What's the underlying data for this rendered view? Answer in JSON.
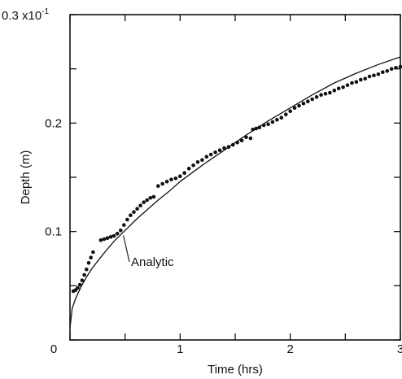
{
  "chart_data": {
    "type": "scatter",
    "title": "",
    "xlabel": "Time (hrs)",
    "ylabel": "Depth (m)",
    "xlim": [
      0,
      3
    ],
    "ylim": [
      0,
      0.03
    ],
    "grid": false,
    "legend": "none",
    "x_ticks": [
      0,
      0.5,
      1,
      1.5,
      2,
      2.5,
      3
    ],
    "y_ticks": [
      0,
      0.005,
      0.01,
      0.015,
      0.02,
      0.025,
      0.03
    ],
    "x_tick_labels": [
      {
        "value": 0,
        "label": "0"
      },
      {
        "value": 1,
        "label": "1"
      },
      {
        "value": 2,
        "label": "2"
      },
      {
        "value": 3,
        "label": "3"
      }
    ],
    "y_tick_labels": [
      {
        "value": 0.01,
        "label": "0.1"
      },
      {
        "value": 0.02,
        "label": "0.2"
      }
    ],
    "y_top_label": {
      "base": "0.3 x10",
      "exponent": "-1"
    },
    "origin_label": "0",
    "analytic_curve": {
      "name": "Analytic",
      "x": [
        0.0,
        0.02,
        0.05,
        0.1,
        0.15,
        0.2,
        0.3,
        0.4,
        0.5,
        0.6,
        0.7,
        0.8,
        0.9,
        1.0,
        1.2,
        1.4,
        1.6,
        1.8,
        2.0,
        2.2,
        2.4,
        2.6,
        2.8,
        3.0
      ],
      "y": [
        0.0011,
        0.0029,
        0.0038,
        0.0049,
        0.0058,
        0.0066,
        0.0079,
        0.0091,
        0.0101,
        0.0111,
        0.012,
        0.0129,
        0.0137,
        0.0146,
        0.0161,
        0.0175,
        0.0189,
        0.0202,
        0.0214,
        0.0226,
        0.0237,
        0.0246,
        0.0254,
        0.0261
      ]
    },
    "series": [
      {
        "x": [
          0.03,
          0.05,
          0.07,
          0.09,
          0.11,
          0.13,
          0.15,
          0.17,
          0.19,
          0.21,
          0.28,
          0.31,
          0.34,
          0.37,
          0.4,
          0.43,
          0.46,
          0.49,
          0.52,
          0.55,
          0.58,
          0.61,
          0.64,
          0.67,
          0.7,
          0.73,
          0.76,
          0.8,
          0.84,
          0.88,
          0.92,
          0.96,
          1.0,
          1.04,
          1.08,
          1.12,
          1.16,
          1.2,
          1.24,
          1.28,
          1.32,
          1.36,
          1.4,
          1.44,
          1.48,
          1.52,
          1.56,
          1.6,
          1.64,
          1.66,
          1.69,
          1.72,
          1.76,
          1.8,
          1.84,
          1.88,
          1.92,
          1.96,
          2.0,
          2.04,
          2.08,
          2.12,
          2.16,
          2.2,
          2.24,
          2.28,
          2.32,
          2.36,
          2.4,
          2.44,
          2.48,
          2.52,
          2.56,
          2.6,
          2.64,
          2.68,
          2.72,
          2.76,
          2.8,
          2.84,
          2.88,
          2.92,
          2.96,
          3.0
        ],
        "y": [
          0.0045,
          0.0046,
          0.0048,
          0.0051,
          0.0055,
          0.006,
          0.0065,
          0.0071,
          0.0076,
          0.0081,
          0.0092,
          0.0093,
          0.0094,
          0.0095,
          0.0096,
          0.0098,
          0.0101,
          0.0106,
          0.0111,
          0.0115,
          0.0118,
          0.0121,
          0.0124,
          0.0127,
          0.0129,
          0.0131,
          0.0132,
          0.0142,
          0.0144,
          0.0146,
          0.0148,
          0.0149,
          0.0151,
          0.0154,
          0.0158,
          0.0161,
          0.0164,
          0.0166,
          0.0169,
          0.0171,
          0.0173,
          0.0175,
          0.0177,
          0.0178,
          0.018,
          0.0182,
          0.0184,
          0.0187,
          0.0186,
          0.0194,
          0.0195,
          0.0196,
          0.0198,
          0.0199,
          0.0201,
          0.0203,
          0.0205,
          0.0208,
          0.0211,
          0.0214,
          0.0216,
          0.0218,
          0.022,
          0.0222,
          0.0224,
          0.0226,
          0.0227,
          0.0228,
          0.023,
          0.0232,
          0.0233,
          0.0235,
          0.0237,
          0.0238,
          0.024,
          0.0241,
          0.0243,
          0.0244,
          0.0245,
          0.0247,
          0.0248,
          0.025,
          0.0251,
          0.0252
        ]
      }
    ],
    "annotations": [
      {
        "text": "Analytic",
        "points_to_x": 0.47,
        "points_to_y": 0.0098
      }
    ]
  }
}
